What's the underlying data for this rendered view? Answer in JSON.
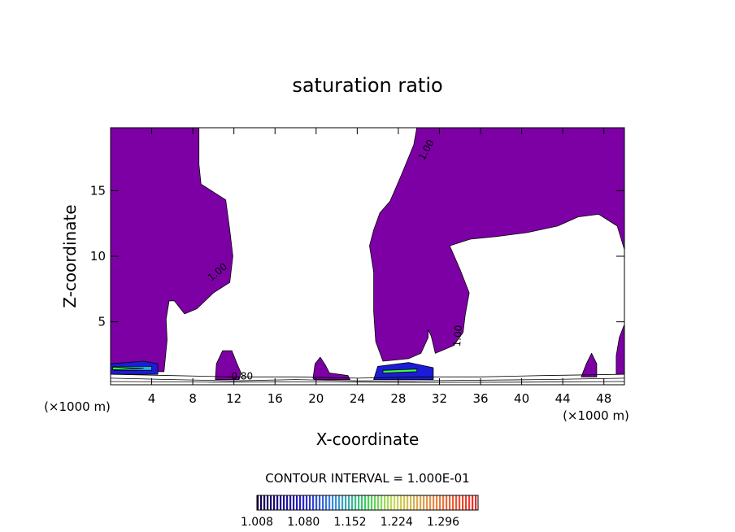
{
  "chart_data": {
    "type": "heatmap",
    "title": "saturation ratio",
    "xlabel": "X-coordinate",
    "ylabel": "Z-coordinate",
    "x_unit": "(×1000 m)",
    "y_unit": "(×1000 m)",
    "xlim": [
      0,
      50
    ],
    "ylim": [
      0.2,
      19.8
    ],
    "x_ticks": [
      4,
      8,
      12,
      16,
      20,
      24,
      28,
      32,
      36,
      40,
      44,
      48
    ],
    "y_ticks": [
      5,
      10,
      15
    ],
    "contour_interval_text": "CONTOUR INTERVAL = 1.000E-01",
    "contour_labels": [
      {
        "text": "1.00",
        "x": 31.0,
        "y": 18.0,
        "angle": -62
      },
      {
        "text": "1.00",
        "x": 10.6,
        "y": 8.6,
        "angle": -40
      },
      {
        "text": "1.00",
        "x": 34.1,
        "y": 3.9,
        "angle": -85
      },
      {
        "text": "0.80",
        "x": 12.8,
        "y": 0.6,
        "angle": 0
      }
    ],
    "colorbar": {
      "min": 1.008,
      "max": 1.35,
      "tick_labels": [
        "1.008",
        "1.080",
        "1.152",
        "1.224",
        "1.296"
      ],
      "tick_values": [
        1.008,
        1.08,
        1.152,
        1.224,
        1.296
      ]
    },
    "regions": [
      {
        "name": "",
        "level": "1.00-1.08",
        "color": "#7d00a5",
        "polygon": [
          [
            0,
            19.8
          ],
          [
            8.6,
            19.8
          ],
          [
            8.6,
            17.0
          ],
          [
            8.8,
            15.5
          ],
          [
            10.2,
            14.8
          ],
          [
            11.2,
            14.3
          ],
          [
            11.6,
            12.0
          ],
          [
            11.9,
            10.0
          ],
          [
            11.6,
            8.0
          ],
          [
            10.0,
            7.2
          ],
          [
            8.4,
            6.0
          ],
          [
            7.2,
            5.6
          ],
          [
            6.2,
            6.6
          ],
          [
            5.7,
            6.6
          ],
          [
            5.4,
            5.2
          ],
          [
            5.5,
            3.6
          ],
          [
            5.2,
            1.2
          ],
          [
            0,
            1.2
          ]
        ]
      },
      {
        "name": "",
        "level": "1.00-1.08",
        "color": "#7d00a5",
        "polygon": [
          [
            29.8,
            19.8
          ],
          [
            50,
            19.8
          ],
          [
            50,
            1.0
          ],
          [
            49.2,
            1.0
          ],
          [
            49.2,
            2.4
          ],
          [
            49.5,
            3.8
          ],
          [
            50,
            4.8
          ],
          [
            50,
            10.5
          ],
          [
            49.3,
            12.3
          ],
          [
            47.5,
            13.2
          ],
          [
            45.5,
            13.0
          ],
          [
            43.5,
            12.3
          ],
          [
            40.5,
            11.8
          ],
          [
            37.5,
            11.5
          ],
          [
            35.0,
            11.3
          ],
          [
            33.0,
            10.8
          ],
          [
            34.0,
            9.0
          ],
          [
            34.9,
            7.2
          ],
          [
            34.5,
            5.5
          ],
          [
            34.3,
            4.2
          ],
          [
            33.4,
            3.2
          ],
          [
            32.2,
            2.8
          ],
          [
            31.6,
            2.6
          ],
          [
            31.2,
            3.9
          ],
          [
            30.9,
            4.4
          ],
          [
            30.9,
            3.8
          ],
          [
            30.2,
            2.6
          ],
          [
            29.0,
            2.2
          ],
          [
            26.5,
            2.0
          ],
          [
            25.8,
            3.5
          ],
          [
            25.6,
            5.8
          ],
          [
            25.6,
            8.8
          ],
          [
            25.2,
            10.8
          ],
          [
            25.6,
            12.0
          ],
          [
            26.2,
            13.3
          ],
          [
            27.2,
            14.2
          ],
          [
            28.3,
            16.2
          ],
          [
            29.5,
            18.5
          ]
        ]
      },
      {
        "name": "",
        "level": "1.00-1.08",
        "color": "#7d00a5",
        "polygon": [
          [
            10.2,
            0.6
          ],
          [
            10.3,
            1.8
          ],
          [
            10.9,
            2.8
          ],
          [
            11.8,
            2.8
          ],
          [
            12.3,
            1.8
          ],
          [
            12.7,
            1.1
          ],
          [
            12.5,
            0.6
          ]
        ]
      },
      {
        "name": "",
        "level": "1.00-1.08",
        "color": "#7d00a5",
        "polygon": [
          [
            19.7,
            0.7
          ],
          [
            19.9,
            1.8
          ],
          [
            20.4,
            2.3
          ],
          [
            20.9,
            1.7
          ],
          [
            21.3,
            1.1
          ],
          [
            23.1,
            0.9
          ],
          [
            23.3,
            0.6
          ],
          [
            19.8,
            0.6
          ]
        ]
      },
      {
        "name": "",
        "level": "1.00-1.08",
        "color": "#7d00a5",
        "polygon": [
          [
            45.8,
            0.8
          ],
          [
            46.3,
            1.8
          ],
          [
            46.8,
            2.6
          ],
          [
            47.3,
            1.8
          ],
          [
            47.3,
            0.8
          ]
        ]
      },
      {
        "name": "",
        "level": "1.08-1.15",
        "color": "#1c1cd8",
        "polygon": [
          [
            0,
            1.0
          ],
          [
            4.6,
            1.0
          ],
          [
            4.6,
            1.8
          ],
          [
            3.2,
            2.0
          ],
          [
            0,
            1.8
          ]
        ]
      },
      {
        "name": "",
        "level": "1.08-1.15",
        "color": "#1c1cd8",
        "polygon": [
          [
            25.6,
            0.6
          ],
          [
            31.4,
            0.6
          ],
          [
            31.4,
            1.5
          ],
          [
            29.0,
            1.9
          ],
          [
            26.0,
            1.6
          ]
        ]
      },
      {
        "name": "",
        "level": "1.15-1.22",
        "color": "#22b0e8",
        "polygon": [
          [
            0.3,
            1.3
          ],
          [
            4.0,
            1.3
          ],
          [
            4.0,
            1.6
          ],
          [
            0.3,
            1.6
          ]
        ]
      },
      {
        "name": "",
        "level": "1.22-1.30",
        "color": "#3aff3a",
        "polygon": [
          [
            0.2,
            1.35
          ],
          [
            3.2,
            1.45
          ],
          [
            0.2,
            1.55
          ]
        ]
      },
      {
        "name": "",
        "level": "1.22-1.30",
        "color": "#3aff3a",
        "polygon": [
          [
            26.5,
            1.1
          ],
          [
            29.8,
            1.2
          ],
          [
            29.8,
            1.4
          ],
          [
            26.5,
            1.3
          ]
        ]
      }
    ],
    "contours": [
      {
        "level": "0.90",
        "points": [
          [
            0,
            1.0
          ],
          [
            6,
            0.9
          ],
          [
            12,
            0.8
          ],
          [
            18,
            0.8
          ],
          [
            24,
            0.7
          ],
          [
            30,
            0.8
          ],
          [
            36,
            0.8
          ],
          [
            42,
            0.9
          ],
          [
            50,
            1.0
          ]
        ]
      },
      {
        "level": "0.80",
        "points": [
          [
            0,
            0.7
          ],
          [
            6,
            0.6
          ],
          [
            12,
            0.5
          ],
          [
            18,
            0.6
          ],
          [
            24,
            0.5
          ],
          [
            30,
            0.5
          ],
          [
            36,
            0.55
          ],
          [
            42,
            0.6
          ],
          [
            50,
            0.7
          ]
        ]
      },
      {
        "level": "0.70",
        "points": [
          [
            0,
            0.45
          ],
          [
            10,
            0.4
          ],
          [
            20,
            0.42
          ],
          [
            30,
            0.38
          ],
          [
            40,
            0.4
          ],
          [
            50,
            0.45
          ]
        ]
      }
    ]
  }
}
